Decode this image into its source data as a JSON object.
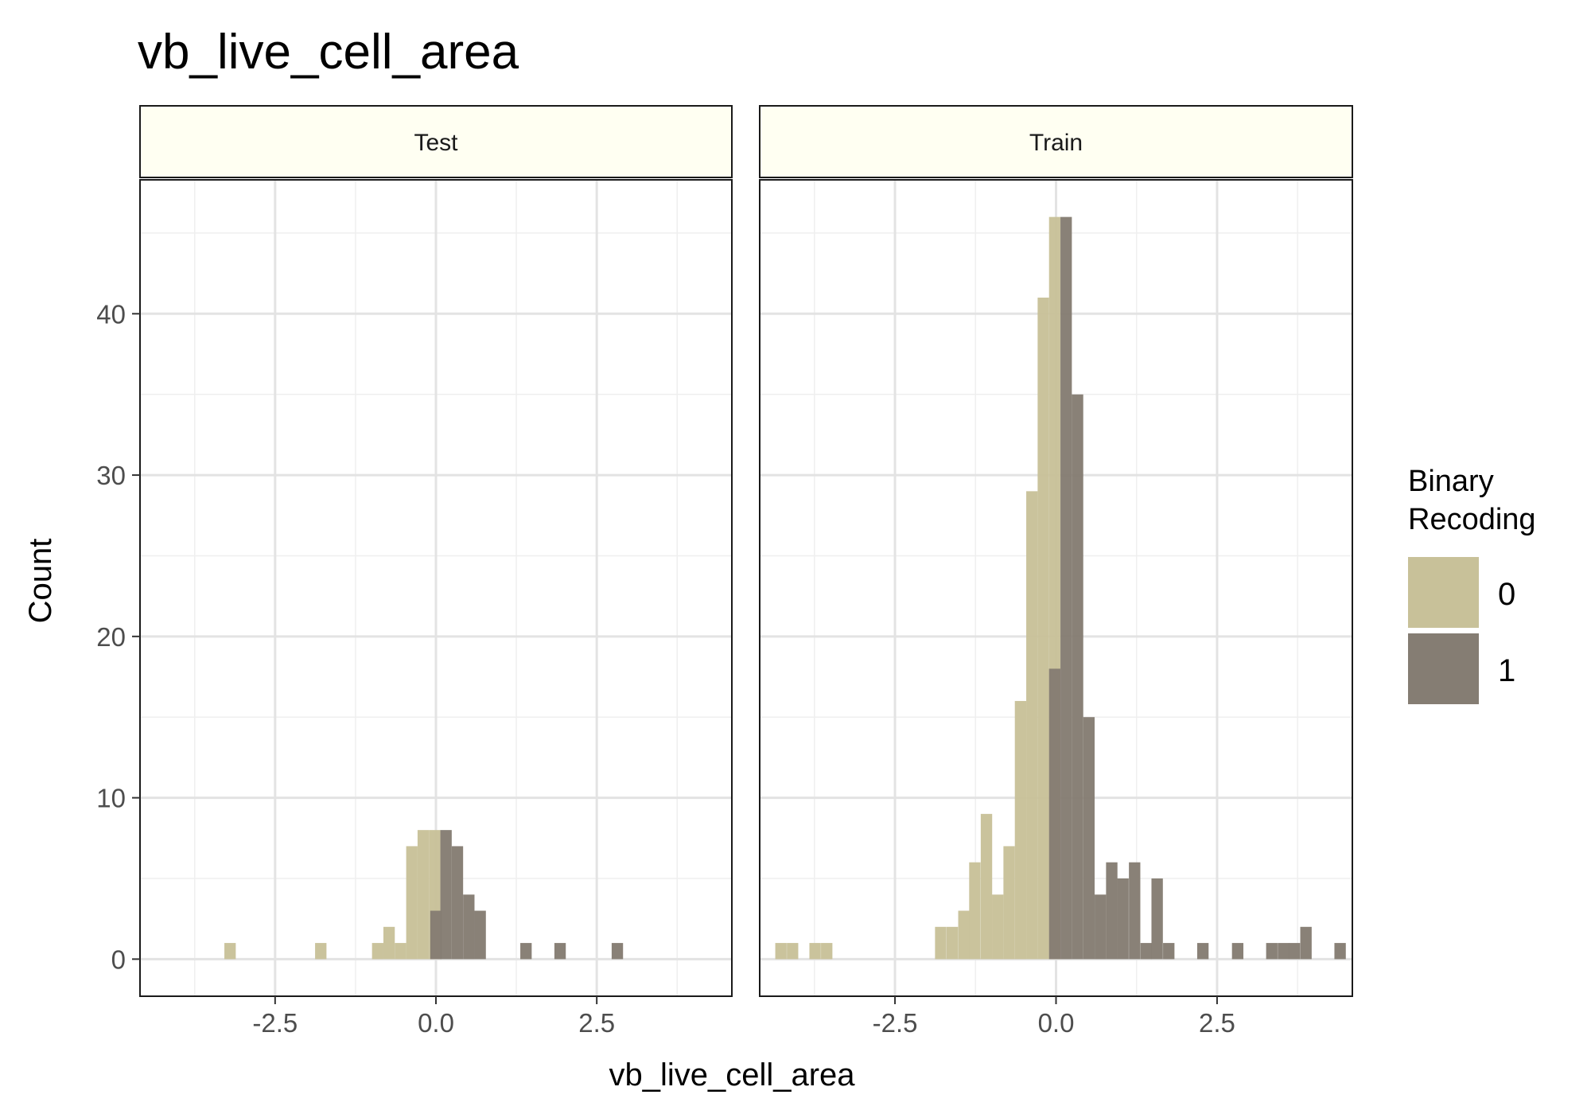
{
  "chart_data": {
    "type": "bar",
    "title": "vb_live_cell_area",
    "xlabel": "vb_live_cell_area",
    "ylabel": "Count",
    "xlim": [
      -4.6,
      4.6
    ],
    "ylim": [
      -2.3,
      48.3
    ],
    "x_ticks": [
      -2.5,
      0.0,
      2.5
    ],
    "x_tick_labels": [
      "-2.5",
      "0.0",
      "2.5"
    ],
    "y_ticks": [
      0,
      10,
      20,
      30,
      40
    ],
    "y_tick_labels": [
      "0",
      "10",
      "20",
      "30",
      "40"
    ],
    "grid": true,
    "legend": {
      "title_lines": [
        "Binary",
        "Recoding"
      ],
      "placement": "right",
      "entries": [
        {
          "label": "0",
          "color": "#C8C199"
        },
        {
          "label": "1",
          "color": "#857D73"
        }
      ]
    },
    "bin_width": 0.177,
    "facets": [
      {
        "name": "Test",
        "series": [
          {
            "name": "0",
            "color": "#C8C199",
            "bars": [
              {
                "x": -3.2,
                "count": 1
              },
              {
                "x": -1.79,
                "count": 1
              },
              {
                "x": -0.905,
                "count": 1
              },
              {
                "x": -0.728,
                "count": 2
              },
              {
                "x": -0.551,
                "count": 1
              },
              {
                "x": -0.374,
                "count": 7
              },
              {
                "x": -0.197,
                "count": 8
              },
              {
                "x": -0.02,
                "count": 8
              }
            ]
          },
          {
            "name": "1",
            "color": "#857D73",
            "bars": [
              {
                "x": 0.0,
                "count": 3
              },
              {
                "x": 0.157,
                "count": 8
              },
              {
                "x": 0.334,
                "count": 7
              },
              {
                "x": 0.511,
                "count": 4
              },
              {
                "x": 0.688,
                "count": 3
              },
              {
                "x": 1.4,
                "count": 1
              },
              {
                "x": 1.93,
                "count": 1
              },
              {
                "x": 2.82,
                "count": 1
              }
            ]
          }
        ]
      },
      {
        "name": "Train",
        "series": [
          {
            "name": "0",
            "color": "#C8C199",
            "bars": [
              {
                "x": -4.27,
                "count": 1
              },
              {
                "x": -4.09,
                "count": 1
              },
              {
                "x": -3.74,
                "count": 1
              },
              {
                "x": -3.56,
                "count": 1
              },
              {
                "x": -1.79,
                "count": 2
              },
              {
                "x": -1.61,
                "count": 2
              },
              {
                "x": -1.43,
                "count": 3
              },
              {
                "x": -1.26,
                "count": 6
              },
              {
                "x": -1.08,
                "count": 9
              },
              {
                "x": -0.905,
                "count": 4
              },
              {
                "x": -0.728,
                "count": 7
              },
              {
                "x": -0.551,
                "count": 16
              },
              {
                "x": -0.374,
                "count": 29
              },
              {
                "x": -0.197,
                "count": 41
              },
              {
                "x": -0.02,
                "count": 46
              }
            ]
          },
          {
            "name": "1",
            "color": "#857D73",
            "bars": [
              {
                "x": -0.02,
                "count": 18
              },
              {
                "x": 0.157,
                "count": 46
              },
              {
                "x": 0.334,
                "count": 35
              },
              {
                "x": 0.511,
                "count": 15
              },
              {
                "x": 0.688,
                "count": 4
              },
              {
                "x": 0.865,
                "count": 6
              },
              {
                "x": 1.04,
                "count": 5
              },
              {
                "x": 1.22,
                "count": 6
              },
              {
                "x": 1.4,
                "count": 1
              },
              {
                "x": 1.57,
                "count": 5
              },
              {
                "x": 1.75,
                "count": 1
              },
              {
                "x": 2.28,
                "count": 1
              },
              {
                "x": 2.82,
                "count": 1
              },
              {
                "x": 3.35,
                "count": 1
              },
              {
                "x": 3.53,
                "count": 1
              },
              {
                "x": 3.7,
                "count": 1
              },
              {
                "x": 3.88,
                "count": 2
              },
              {
                "x": 4.41,
                "count": 1
              }
            ]
          }
        ]
      }
    ]
  }
}
